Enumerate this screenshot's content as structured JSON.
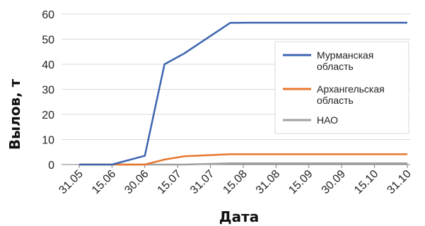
{
  "chart_data": {
    "type": "line",
    "title": "",
    "xlabel": "Дата",
    "ylabel": "Вылов, т",
    "categories": [
      "31.05",
      "15.06",
      "30.06",
      "15.07",
      "31.07",
      "15.08",
      "31.08",
      "15.09",
      "30.09",
      "15.10",
      "31.10"
    ],
    "ylim": [
      0,
      60
    ],
    "yticks": [
      0,
      10,
      20,
      30,
      40,
      50,
      60
    ],
    "grid": "horizontal",
    "legend_position": "right",
    "series": [
      {
        "name": "Мурманская область",
        "name_lines": [
          "Мурманская",
          "область"
        ],
        "color": "#3d65b0",
        "points": [
          [
            0,
            0
          ],
          [
            1,
            0
          ],
          [
            2,
            3.5
          ],
          [
            2.6,
            40
          ],
          [
            3.2,
            44.3
          ],
          [
            4.6,
            56.5
          ],
          [
            5.2,
            56.6
          ],
          [
            10,
            56.6
          ]
        ]
      },
      {
        "name": "Архангельская область",
        "name_lines": [
          "Архангельская",
          "область"
        ],
        "color": "#e8762c",
        "points": [
          [
            0,
            0
          ],
          [
            2,
            0
          ],
          [
            2.6,
            2
          ],
          [
            3.2,
            3.3
          ],
          [
            4.6,
            4.1
          ],
          [
            10,
            4.1
          ]
        ]
      },
      {
        "name": "НАО",
        "name_lines": [
          "НАО"
        ],
        "color": "#a0a0a0",
        "points": [
          [
            0,
            0
          ],
          [
            3.2,
            0
          ],
          [
            4.6,
            0.5
          ],
          [
            10,
            0.5
          ]
        ]
      }
    ]
  }
}
